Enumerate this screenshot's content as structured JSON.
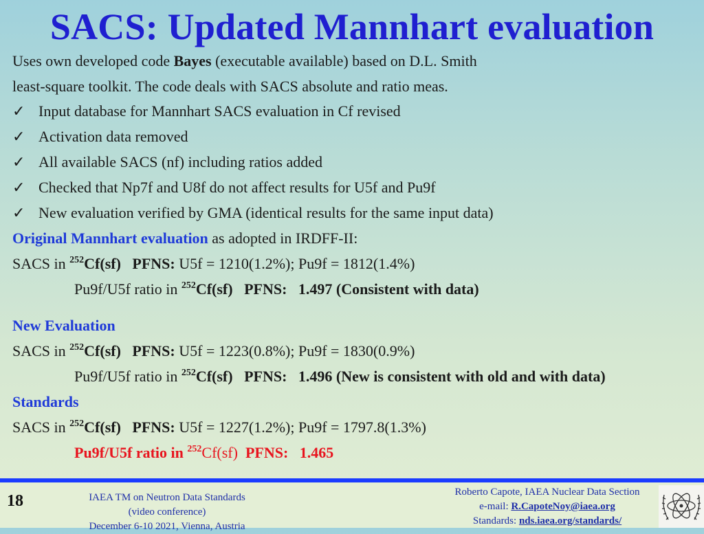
{
  "title": "SACS: Updated Mannhart evaluation",
  "intro": {
    "line1_pre": "Uses own developed code ",
    "line1_bold": "Bayes",
    "line1_post": " (executable available) based on D.L. Smith",
    "line2": "least-square toolkit. The code deals with SACS absolute and ratio meas."
  },
  "bullets": [
    "Input database for Mannhart SACS evaluation in Cf revised",
    "Activation data removed",
    "All available SACS (nf) including ratios added",
    "Checked that Np7f and U8f do not affect results for U5f and Pu9f",
    "New evaluation verified by GMA (identical results for the same input data)"
  ],
  "check_glyph": "✓",
  "original": {
    "heading": "Original Mannhart evaluation",
    "heading_post": " as adopted in IRDFF-II:",
    "sacs_pre": "SACS  in ",
    "mass": "252",
    "cf": "Cf(sf)",
    "pfns": "PFNS:",
    "values": " U5f = 1210(1.2%); Pu9f = 1812(1.4%)",
    "ratio_pre": "Pu9f/U5f ratio in ",
    "ratio_value": "1.497 (Consistent with data)"
  },
  "new_eval": {
    "heading": "New Evaluation",
    "sacs_pre": "SACS  in ",
    "mass": "252",
    "cf": "Cf(sf)",
    "pfns": "PFNS:",
    "values": " U5f = 1223(0.8%); Pu9f = 1830(0.9%)",
    "ratio_pre": "Pu9f/U5f ratio in ",
    "ratio_value": "1.496 (New is consistent with old and with data)"
  },
  "standards": {
    "heading": "Standards",
    "sacs_pre": "SACS  in ",
    "mass": "252",
    "cf": "Cf(sf)",
    "pfns": "PFNS:",
    "values": " U5f = 1227(1.2%); Pu9f = 1797.8(1.3%)",
    "ratio_pre": "Pu9f/U5f ratio in ",
    "ratio_cf": "Cf(sf)",
    "ratio_pfns": "PFNS:",
    "ratio_value": "1.465"
  },
  "footer": {
    "page_number": "18",
    "conference_line1": "IAEA TM on Neutron Data Standards",
    "conference_line2": "(video conference)",
    "conference_line3": "December 6-10 2021, Vienna, Austria",
    "contact_line1": "Roberto Capote, IAEA Nuclear Data Section",
    "email_label": "e-mail: ",
    "email": "R.CapoteNoy@iaea.org",
    "standards_label": "Standards:    ",
    "standards_link": "nds.iaea.org/standards/",
    "logo_icon": "iaea-logo-icon"
  },
  "colors": {
    "title": "#1f1fd0",
    "heading": "#1f3ad8",
    "highlight": "#e8141e",
    "rule": "#1a3cff"
  }
}
